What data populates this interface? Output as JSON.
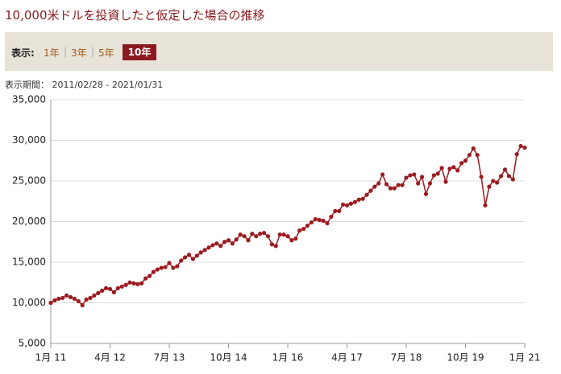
{
  "header": {
    "title": "10,000米ドルを投資したと仮定した場合の推移"
  },
  "controls": {
    "label": "表示:",
    "options": [
      "1年",
      "3年",
      "5年",
      "10年"
    ],
    "selected": "10年"
  },
  "period": {
    "label": "表示期間：",
    "value": "2011/02/28 - 2021/01/31"
  },
  "chart_data": {
    "type": "line",
    "color": "#9b1b1f",
    "grid": true,
    "categories": [
      "1月 11",
      null,
      null,
      null,
      null,
      null,
      null,
      null,
      null,
      null,
      null,
      null,
      null,
      null,
      null,
      "4月 12",
      null,
      null,
      null,
      null,
      null,
      null,
      null,
      null,
      null,
      null,
      null,
      null,
      null,
      null,
      "7月 13",
      null,
      null,
      null,
      null,
      null,
      null,
      null,
      null,
      null,
      null,
      null,
      null,
      null,
      null,
      "10月 14",
      null,
      null,
      null,
      null,
      null,
      null,
      null,
      null,
      null,
      null,
      null,
      null,
      null,
      null,
      "1月 16",
      null,
      null,
      null,
      null,
      null,
      null,
      null,
      null,
      null,
      null,
      null,
      null,
      null,
      null,
      "4月 17",
      null,
      null,
      null,
      null,
      null,
      null,
      null,
      null,
      null,
      null,
      null,
      null,
      null,
      null,
      "7月 18",
      null,
      null,
      null,
      null,
      null,
      null,
      null,
      null,
      null,
      null,
      null,
      null,
      null,
      null,
      "10月 19",
      null,
      null,
      null,
      null,
      null,
      null,
      null,
      null,
      null,
      null,
      null,
      null,
      null,
      null,
      "1月 21"
    ],
    "values": [
      10000,
      10300,
      10500,
      10600,
      10900,
      10700,
      10500,
      10200,
      9700,
      10400,
      10600,
      10900,
      11200,
      11500,
      11800,
      11700,
      11300,
      11800,
      12000,
      12200,
      12500,
      12400,
      12300,
      12400,
      13000,
      13300,
      13800,
      14100,
      14300,
      14400,
      14900,
      14300,
      14500,
      15200,
      15600,
      15900,
      15400,
      15800,
      16200,
      16500,
      16800,
      17100,
      17300,
      17000,
      17500,
      17700,
      17300,
      17800,
      18400,
      18200,
      17700,
      18500,
      18200,
      18500,
      18600,
      18200,
      17200,
      17000,
      18400,
      18400,
      18200,
      17700,
      17900,
      18900,
      19100,
      19500,
      19900,
      20300,
      20200,
      20100,
      19800,
      20600,
      21300,
      21300,
      22100,
      22000,
      22200,
      22400,
      22700,
      22800,
      23300,
      23800,
      24300,
      24700,
      25800,
      24600,
      24100,
      24100,
      24500,
      24500,
      25400,
      25700,
      25800,
      24700,
      25500,
      23400,
      24700,
      25700,
      25900,
      26600,
      24900,
      26500,
      26700,
      26300,
      27200,
      27500,
      28200,
      29000,
      28200,
      25500,
      22000,
      24300,
      25000,
      24800,
      25600,
      26400,
      25600,
      25200,
      28300,
      29300,
      29100
    ],
    "ylim": [
      5000,
      35000
    ],
    "yticks": [
      {
        "value": 5000,
        "label": "5,000"
      },
      {
        "value": 10000,
        "label": "10,000"
      },
      {
        "value": 15000,
        "label": "15,000"
      },
      {
        "value": 20000,
        "label": "20,000"
      },
      {
        "value": 25000,
        "label": "25,000"
      },
      {
        "value": 30000,
        "label": "30,000"
      },
      {
        "value": 35000,
        "label": "35,000"
      }
    ]
  }
}
